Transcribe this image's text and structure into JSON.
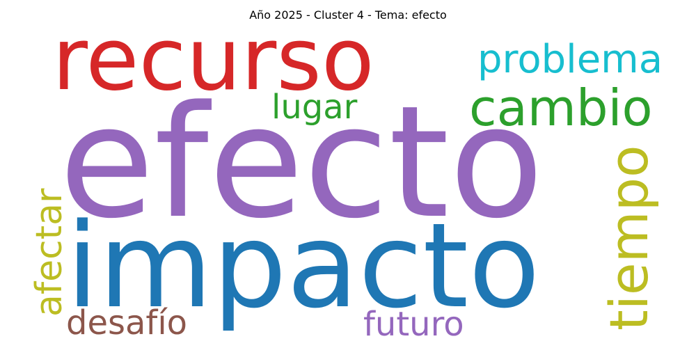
{
  "title": "Año 2025 - Cluster 4 - Tema: efecto",
  "words": [
    {
      "id": "efecto",
      "text": "efecto",
      "color": "#9467bd"
    },
    {
      "id": "impacto",
      "text": "impacto",
      "color": "#1f77b4"
    },
    {
      "id": "recurso",
      "text": "recurso",
      "color": "#d62728"
    },
    {
      "id": "cambio",
      "text": "cambio",
      "color": "#2ca02c"
    },
    {
      "id": "problema",
      "text": "problema",
      "color": "#17becf"
    },
    {
      "id": "tiempo",
      "text": "tiempo",
      "color": "#bcbd22"
    },
    {
      "id": "lugar",
      "text": "lugar",
      "color": "#2ca02c"
    },
    {
      "id": "afectar",
      "text": "afectar",
      "color": "#bcbd22"
    },
    {
      "id": "desafio",
      "text": "desafío",
      "color": "#8c564b"
    },
    {
      "id": "futuro",
      "text": "futuro",
      "color": "#9467bd"
    }
  ]
}
